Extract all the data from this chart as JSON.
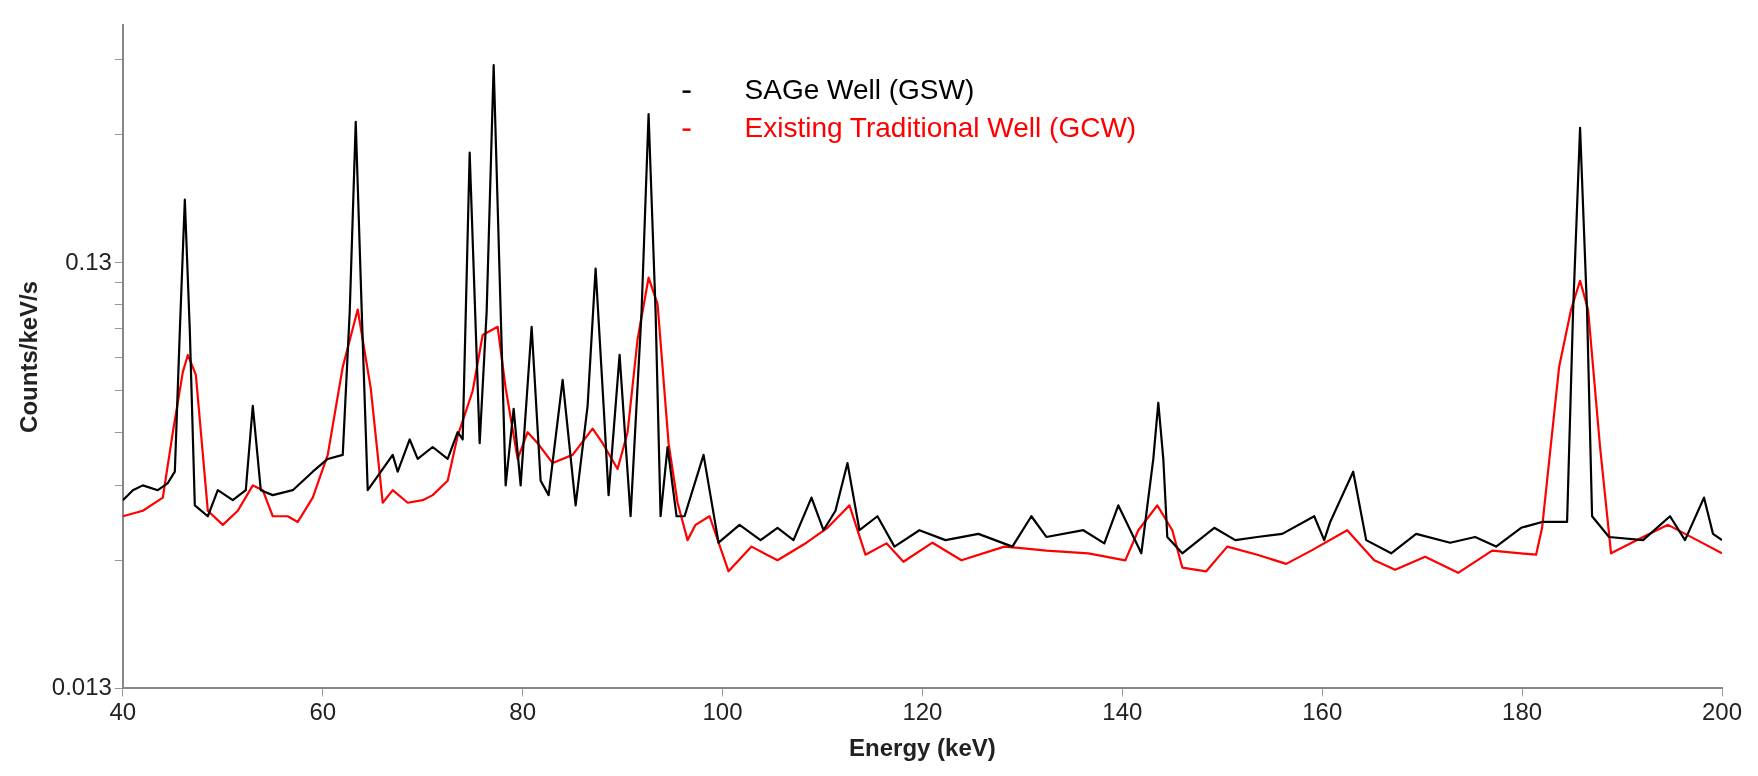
{
  "chart_data": {
    "type": "line",
    "xlabel": "Energy (keV)",
    "ylabel": "Counts/keV/s",
    "log": true,
    "marker": "none",
    "legend": "top",
    "xlim": [
      40,
      200
    ],
    "xticks": [
      40,
      60,
      80,
      100,
      120,
      140,
      160,
      180,
      200
    ],
    "ylim": [
      0.013,
      0.47
    ],
    "yticks": [
      0.013,
      {
        "value": 0.026,
        "label": null
      },
      {
        "value": 0.039,
        "label": null
      },
      {
        "value": 0.052,
        "label": null
      },
      {
        "value": 0.065,
        "label": null
      },
      {
        "value": 0.078,
        "label": null
      },
      {
        "value": 0.091,
        "label": null
      },
      {
        "value": 0.104,
        "label": null
      },
      {
        "value": 0.117,
        "label": null
      },
      0.13,
      {
        "value": 0.26,
        "label": null
      },
      {
        "value": 0.39,
        "label": null
      }
    ],
    "series": [
      {
        "name": "SAGe Well (GSW)",
        "color": "#000000",
        "x": [
          40,
          41,
          42,
          43.5,
          44.5,
          45.2,
          45.7,
          46.2,
          46.7,
          47.2,
          48.5,
          49.5,
          51,
          52.3,
          53,
          53.8,
          55,
          57,
          59,
          60.5,
          62,
          62.7,
          63.3,
          63.9,
          64.5,
          65.5,
          67,
          67.5,
          68.7,
          69.5,
          71,
          72.5,
          73.5,
          74,
          74.7,
          75.7,
          76.4,
          77.1,
          77.8,
          78.3,
          79.1,
          79.8,
          80.9,
          81.8,
          82.6,
          84,
          85.3,
          86.5,
          87.3,
          88.1,
          88.6,
          89.7,
          90.8,
          91.9,
          92.6,
          93.3,
          93.8,
          94.5,
          95.4,
          96.2,
          98.1,
          99.6,
          101.7,
          103.8,
          105.5,
          107.1,
          108.9,
          110.1,
          111.3,
          112.5,
          113.7,
          115.5,
          117.2,
          119.7,
          122.3,
          125.6,
          129,
          130.9,
          132.4,
          136.1,
          138.2,
          139.6,
          140.8,
          141.9,
          143.1,
          143.6,
          144.1,
          144.5,
          146,
          149.2,
          151.3,
          153.5,
          156,
          159.2,
          160.2,
          160.8,
          163.1,
          164.4,
          166.9,
          169.4,
          172.8,
          175.3,
          177.4,
          179.9,
          182,
          184.5,
          185.1,
          185.8,
          186.5,
          187,
          188.7,
          192.1,
          194.8,
          196.3,
          198.2,
          199.1,
          200
        ],
        "values": [
          0.036,
          0.038,
          0.039,
          0.038,
          0.0395,
          0.042,
          0.09,
          0.183,
          0.09,
          0.035,
          0.033,
          0.038,
          0.036,
          0.038,
          0.06,
          0.038,
          0.037,
          0.038,
          0.042,
          0.045,
          0.046,
          0.1,
          0.279,
          0.1,
          0.038,
          0.041,
          0.046,
          0.042,
          0.05,
          0.045,
          0.048,
          0.045,
          0.052,
          0.05,
          0.236,
          0.049,
          0.1,
          0.379,
          0.1,
          0.039,
          0.059,
          0.039,
          0.092,
          0.04,
          0.037,
          0.069,
          0.035,
          0.06,
          0.126,
          0.06,
          0.037,
          0.079,
          0.033,
          0.1,
          0.291,
          0.1,
          0.033,
          0.048,
          0.033,
          0.033,
          0.046,
          0.0286,
          0.0315,
          0.029,
          0.031,
          0.029,
          0.0365,
          0.0306,
          0.034,
          0.044,
          0.0306,
          0.033,
          0.028,
          0.0306,
          0.029,
          0.03,
          0.028,
          0.033,
          0.0295,
          0.0306,
          0.0285,
          0.035,
          0.0306,
          0.027,
          0.045,
          0.061,
          0.045,
          0.0295,
          0.027,
          0.031,
          0.029,
          0.0295,
          0.03,
          0.033,
          0.029,
          0.032,
          0.042,
          0.029,
          0.027,
          0.03,
          0.0286,
          0.0295,
          0.028,
          0.031,
          0.032,
          0.032,
          0.1,
          0.27,
          0.1,
          0.033,
          0.0295,
          0.029,
          0.033,
          0.029,
          0.0365,
          0.03,
          0.029
        ]
      },
      {
        "name": "Existing Traditional Well (GCW)",
        "color": "#ff0000",
        "x": [
          40,
          42,
          44,
          45,
          46,
          46.5,
          47.3,
          48.5,
          50,
          51.5,
          53,
          54,
          55,
          56.5,
          57.5,
          59,
          60.5,
          62,
          63.5,
          64.8,
          66,
          67,
          68.5,
          70,
          71,
          72.5,
          73.5,
          75,
          76,
          77.5,
          78.3,
          79.5,
          80.5,
          81.5,
          83,
          85,
          87,
          88,
          89.5,
          90.5,
          91.5,
          92.6,
          93.5,
          94.6,
          95.5,
          96.5,
          97.3,
          98.7,
          100.6,
          102.9,
          105.5,
          108.4,
          110.5,
          112.7,
          114.3,
          116.4,
          118.1,
          121,
          123.9,
          128.2,
          132.4,
          136.6,
          140.3,
          141.6,
          143.5,
          145,
          146,
          148.4,
          150.5,
          153.5,
          156.4,
          158.9,
          162.5,
          165.2,
          167.3,
          170.3,
          173.6,
          177,
          181.4,
          182,
          183.7,
          184.9,
          185.8,
          186.6,
          187.8,
          188.9,
          192.1,
          194.6,
          197.5,
          200
        ],
        "values": [
          0.033,
          0.034,
          0.0365,
          0.052,
          0.072,
          0.079,
          0.071,
          0.034,
          0.0315,
          0.034,
          0.039,
          0.038,
          0.033,
          0.033,
          0.032,
          0.0365,
          0.046,
          0.074,
          0.101,
          0.066,
          0.0355,
          0.038,
          0.0355,
          0.036,
          0.037,
          0.04,
          0.051,
          0.065,
          0.088,
          0.092,
          0.066,
          0.045,
          0.052,
          0.049,
          0.044,
          0.046,
          0.053,
          0.049,
          0.0426,
          0.052,
          0.086,
          0.12,
          0.104,
          0.049,
          0.0355,
          0.029,
          0.0315,
          0.033,
          0.0245,
          0.028,
          0.026,
          0.0286,
          0.031,
          0.035,
          0.0268,
          0.0285,
          0.0258,
          0.0286,
          0.026,
          0.028,
          0.0274,
          0.027,
          0.026,
          0.0306,
          0.035,
          0.0306,
          0.025,
          0.0245,
          0.028,
          0.0268,
          0.0255,
          0.0274,
          0.0306,
          0.026,
          0.0247,
          0.0265,
          0.0243,
          0.0274,
          0.0268,
          0.031,
          0.074,
          0.101,
          0.118,
          0.101,
          0.048,
          0.027,
          0.0295,
          0.0315,
          0.029,
          0.027
        ]
      }
    ]
  }
}
